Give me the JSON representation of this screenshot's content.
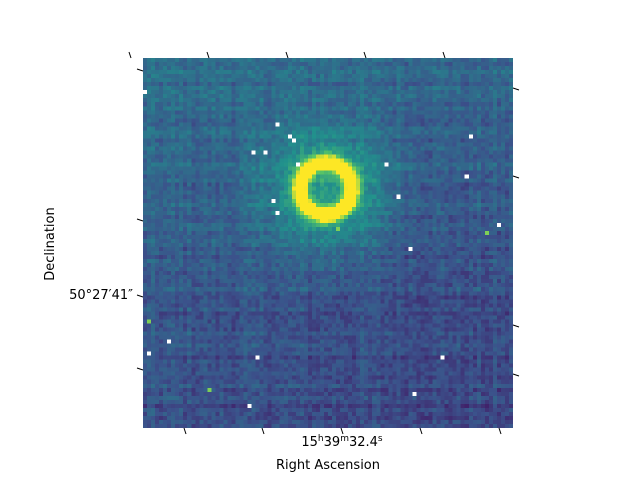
{
  "chart_data": {
    "type": "heatmap",
    "title": "",
    "xlabel": "Right Ascension",
    "ylabel": "Declination",
    "colormap": "viridis",
    "colormap_colors": [
      "#440154",
      "#3b528b",
      "#21918c",
      "#5ec962",
      "#fde725"
    ],
    "missing_pixel_color": "#ffffff",
    "x_ticks": {
      "labeled": [
        {
          "h": "15",
          "m": "39",
          "s": "32.4"
        }
      ]
    },
    "y_ticks": {
      "labeled": [
        "50°27′41″"
      ]
    },
    "source": {
      "shape": "ring",
      "description_units": "image pixels",
      "center": [
        45,
        32
      ],
      "radius": 6.5,
      "width": 1.8,
      "halo_radius": 14
    },
    "grid": {
      "cols": 92,
      "rows": 92
    },
    "missing_pixels": [
      [
        33,
        16
      ],
      [
        36,
        19
      ],
      [
        37,
        20
      ],
      [
        27,
        23
      ],
      [
        30,
        23
      ],
      [
        38,
        26
      ],
      [
        60,
        26
      ],
      [
        81,
        19
      ],
      [
        32,
        35
      ],
      [
        33,
        38
      ],
      [
        63,
        34
      ],
      [
        80,
        29
      ],
      [
        88,
        41
      ],
      [
        66,
        47
      ],
      [
        0,
        8
      ],
      [
        6,
        70
      ],
      [
        1,
        73
      ],
      [
        28,
        74
      ],
      [
        74,
        74
      ],
      [
        67,
        83
      ],
      [
        26,
        86
      ]
    ],
    "bright_pixels": [
      [
        48,
        42
      ],
      [
        85,
        43
      ],
      [
        1,
        65
      ],
      [
        16,
        82
      ]
    ]
  }
}
